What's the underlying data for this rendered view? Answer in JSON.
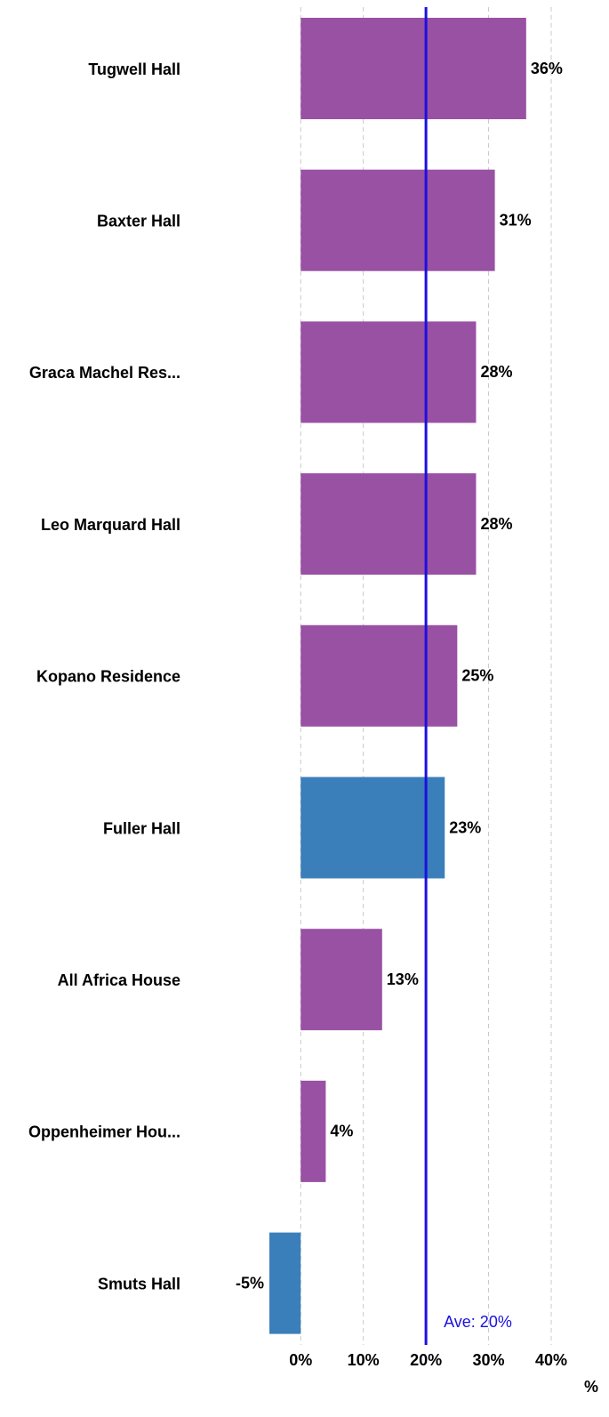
{
  "chart_data": {
    "type": "hbar",
    "categories": [
      "Tugwell Hall",
      "Baxter Hall",
      "Graca Machel Res...",
      "Leo Marquard Hall",
      "Kopano Residence",
      "Fuller Hall",
      "All Africa House",
      "Oppenheimer Hou...",
      "Smuts Hall"
    ],
    "values": [
      36,
      31,
      28,
      28,
      25,
      23,
      13,
      4,
      -5
    ],
    "value_labels": [
      "36%",
      "31%",
      "28%",
      "28%",
      "25%",
      "23%",
      "13%",
      "4%",
      "-5%"
    ],
    "colors": [
      "#9951a4",
      "#9951a4",
      "#9951a4",
      "#9951a4",
      "#9951a4",
      "#3a7fba",
      "#9951a4",
      "#9951a4",
      "#3a7fba"
    ],
    "xlim": [
      -5,
      40
    ],
    "xticks": [
      {
        "value": 0,
        "label": "0%"
      },
      {
        "value": 10,
        "label": "10%"
      },
      {
        "value": 20,
        "label": "20%"
      },
      {
        "value": 30,
        "label": "30%"
      },
      {
        "value": 40,
        "label": "40%"
      }
    ],
    "xlabel": "%",
    "grid": true,
    "reference_line": {
      "value": 20,
      "label": "Ave: 20%",
      "color": "#1a10e0"
    }
  }
}
